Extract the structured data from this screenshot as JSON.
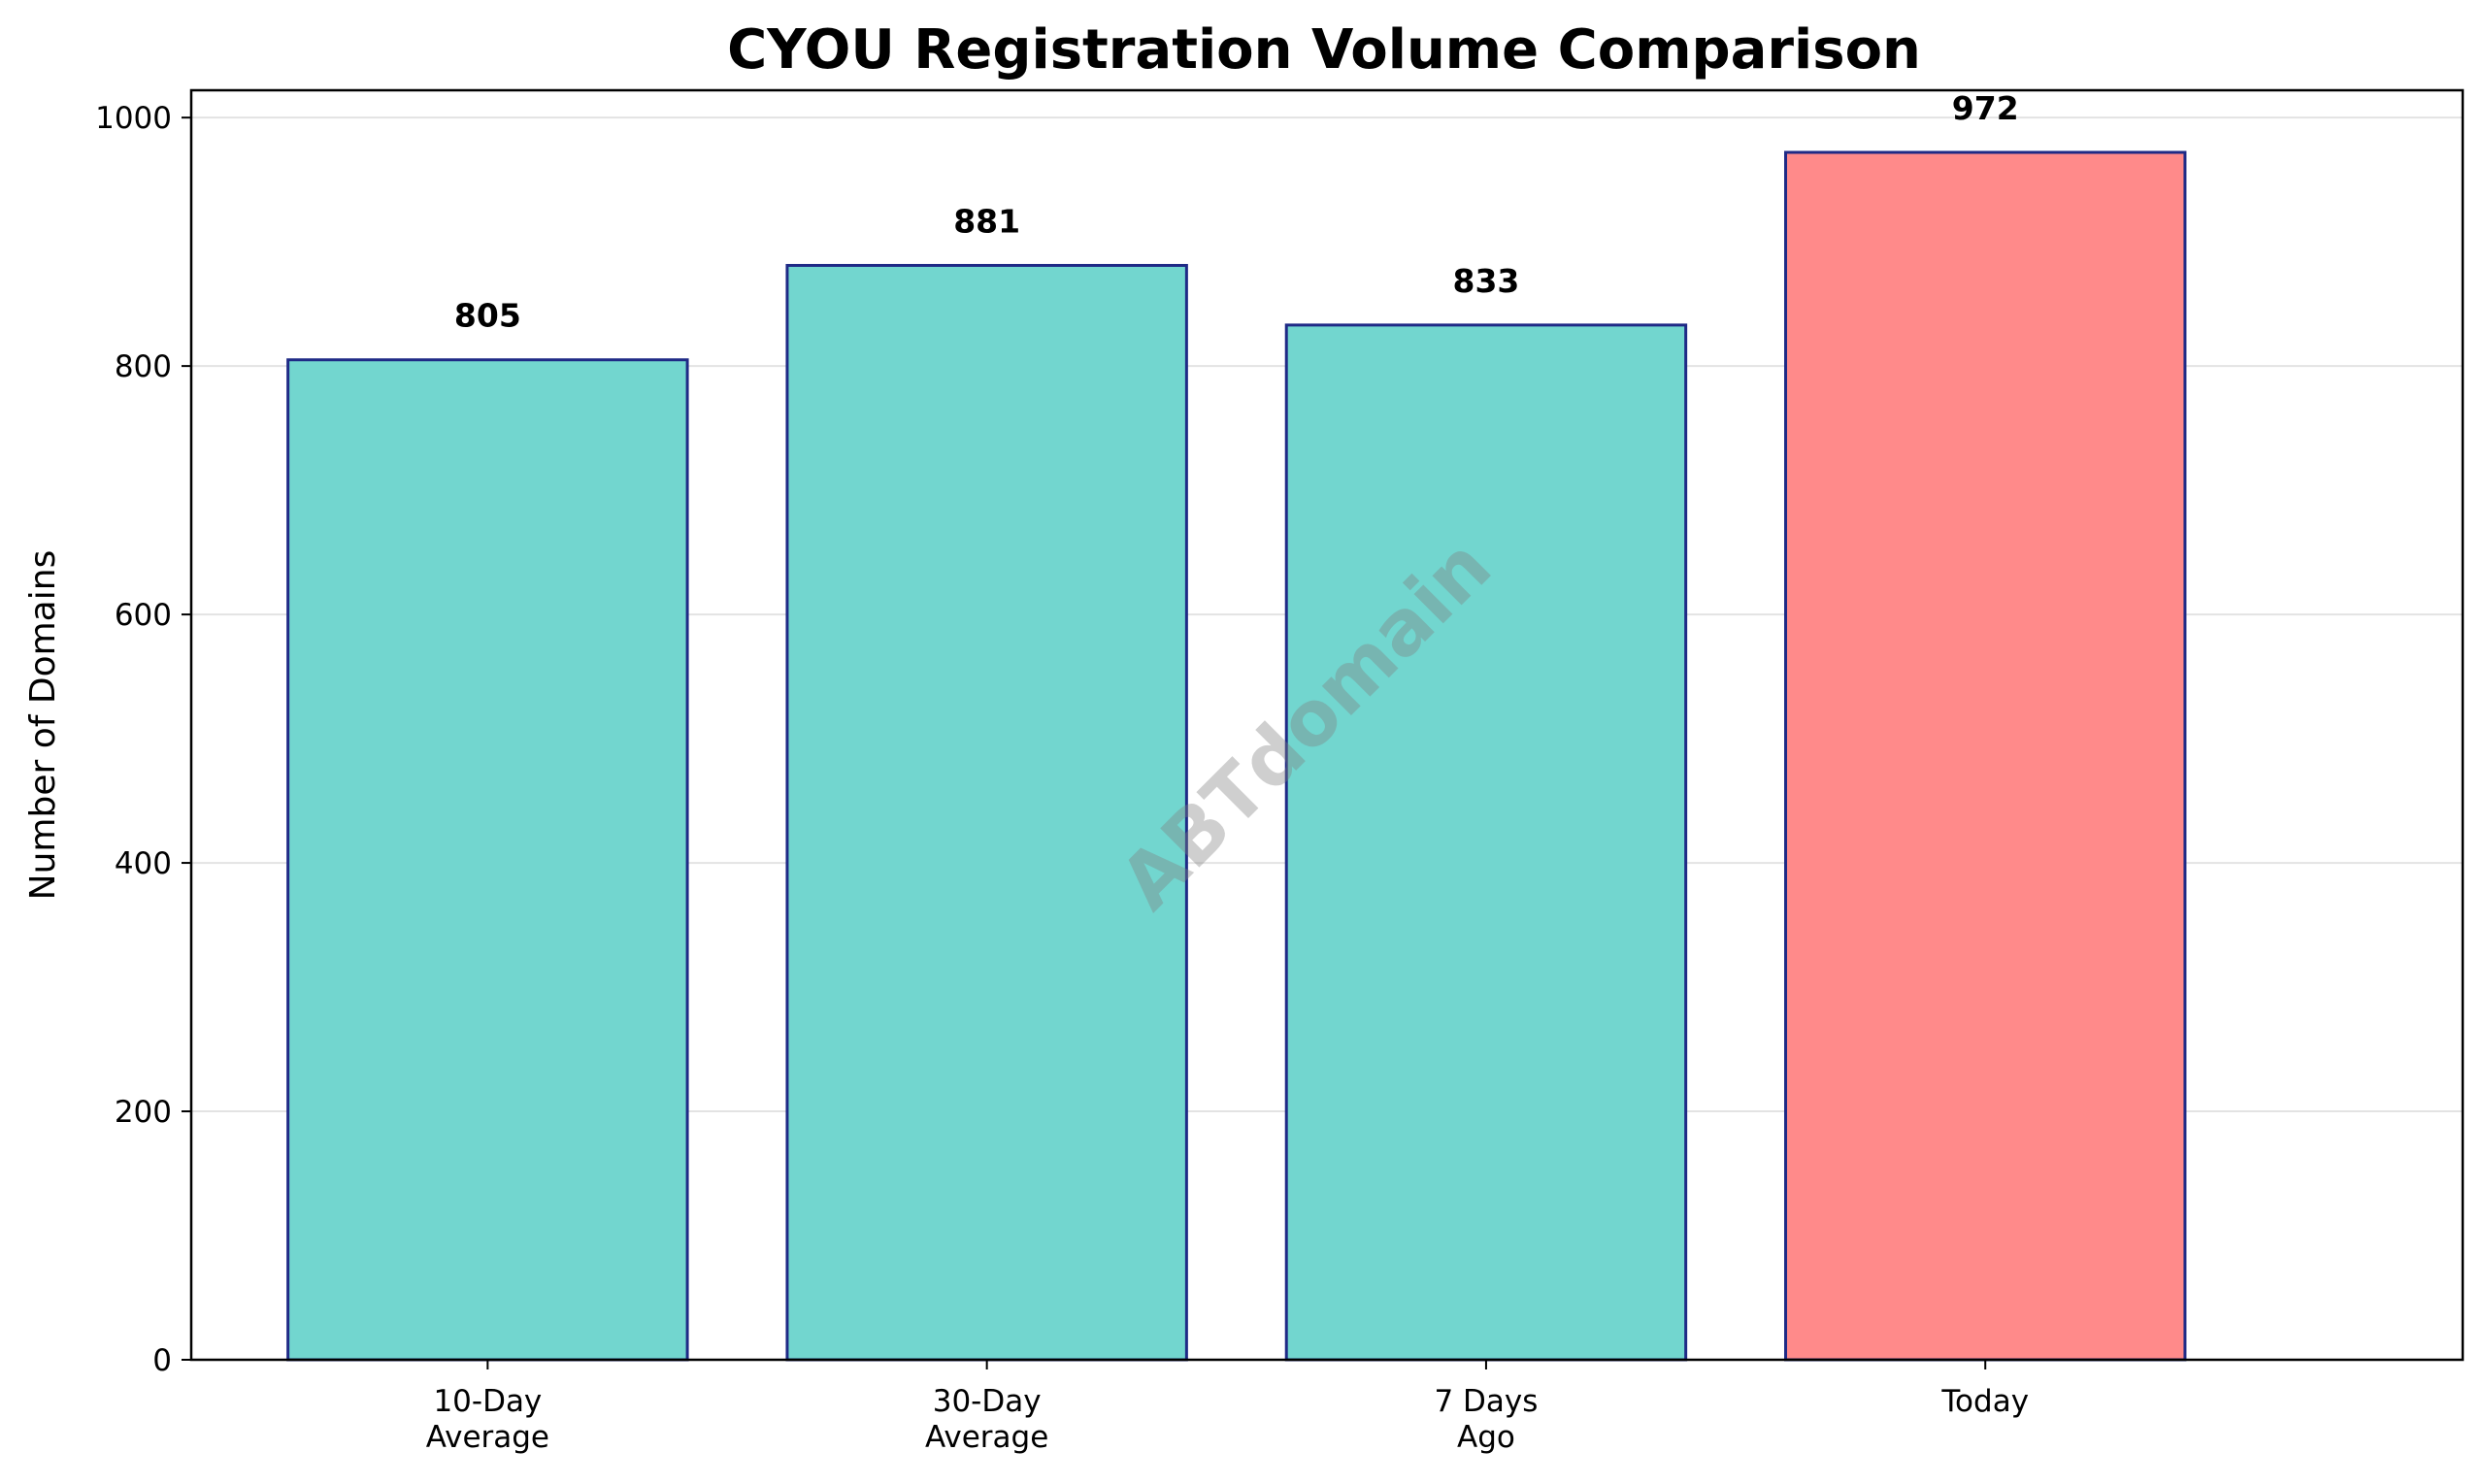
{
  "chart_data": {
    "type": "bar",
    "title": "CYOU Registration Volume Comparison",
    "xlabel": "",
    "ylabel": "Number of Domains",
    "categories": [
      [
        "10-Day",
        "Average"
      ],
      [
        "30-Day",
        "Average"
      ],
      [
        "7 Days",
        "Ago"
      ],
      [
        "Today"
      ]
    ],
    "values": [
      805,
      881,
      833,
      972
    ],
    "value_labels": [
      "805",
      "881",
      "833",
      "972"
    ],
    "bar_colors": [
      "#72d6cf",
      "#72d6cf",
      "#72d6cf",
      "#ff8a8a"
    ],
    "bar_edge_color": "#1f2a86",
    "ylim": [
      0,
      1022
    ],
    "yticks": [
      0,
      200,
      400,
      600,
      800,
      1000
    ],
    "grid": "horizontal",
    "legend": "none",
    "watermark": "ABTdomain"
  }
}
